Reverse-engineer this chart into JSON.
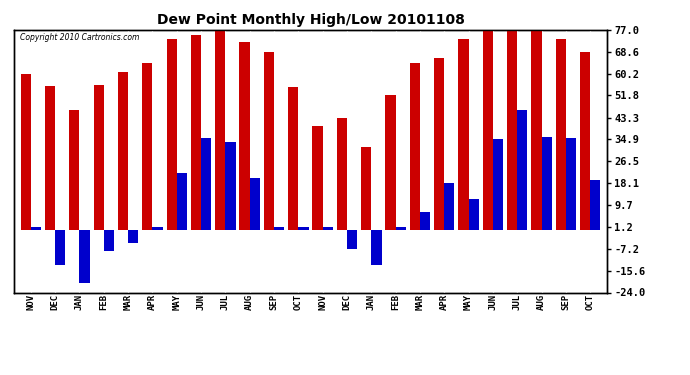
{
  "title": "Dew Point Monthly High/Low 20101108",
  "copyright": "Copyright 2010 Cartronics.com",
  "months": [
    "NOV",
    "DEC",
    "JAN",
    "FEB",
    "MAR",
    "APR",
    "MAY",
    "JUN",
    "JUL",
    "AUG",
    "SEP",
    "OCT",
    "NOV",
    "DEC",
    "JAN",
    "FEB",
    "MAR",
    "APR",
    "MAY",
    "JUN",
    "JUL",
    "AUG",
    "SEP",
    "OCT"
  ],
  "highs": [
    60.2,
    55.4,
    46.4,
    55.9,
    60.8,
    64.4,
    73.4,
    75.2,
    77.0,
    72.5,
    68.6,
    55.0,
    40.1,
    43.3,
    32.0,
    51.8,
    64.4,
    66.2,
    73.4,
    77.0,
    77.0,
    77.0,
    73.4,
    68.6
  ],
  "lows": [
    1.2,
    -13.6,
    -20.2,
    -8.0,
    -5.0,
    1.2,
    22.0,
    35.6,
    33.8,
    20.0,
    1.2,
    1.2,
    1.2,
    -7.2,
    -13.6,
    1.2,
    7.0,
    18.1,
    12.0,
    34.9,
    46.4,
    36.0,
    35.6,
    19.4
  ],
  "bar_color_high": "#cc0000",
  "bar_color_low": "#0000cc",
  "background_color": "#ffffff",
  "plot_bg_color": "#ffffff",
  "grid_color": "#aaaaaa",
  "yticks": [
    77.0,
    68.6,
    60.2,
    51.8,
    43.3,
    34.9,
    26.5,
    18.1,
    9.7,
    1.2,
    -7.2,
    -15.6,
    -24.0
  ],
  "ylim": [
    -24.0,
    77.0
  ],
  "figsize": [
    6.9,
    3.75
  ],
  "dpi": 100
}
